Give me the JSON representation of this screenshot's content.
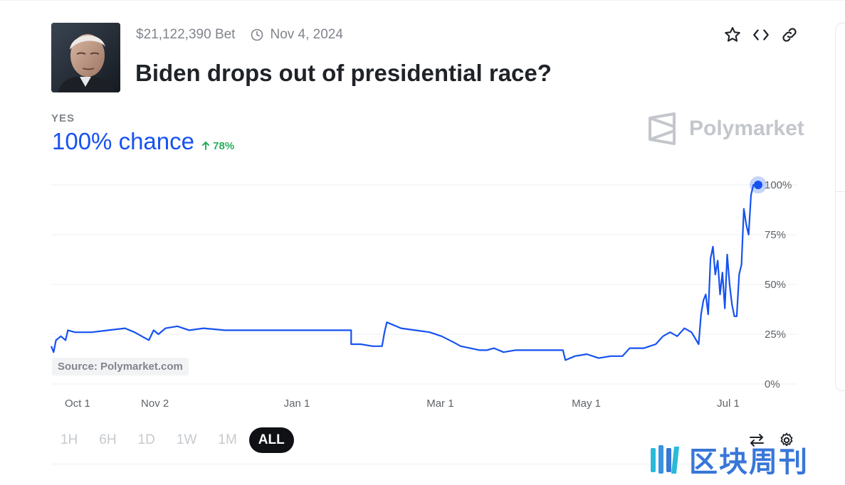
{
  "market": {
    "volume": "$21,122,390 Bet",
    "end_date": "Nov 4, 2024",
    "title": "Biden drops out of presidential race?"
  },
  "outcome": {
    "label": "YES",
    "chance": "100% chance",
    "delta": "78%"
  },
  "brand": {
    "name": "Polymarket"
  },
  "source_note": "Source: Polymarket.com",
  "ranges": [
    "1H",
    "6H",
    "1D",
    "1W",
    "1M",
    "ALL"
  ],
  "active_range": "ALL",
  "icons": {
    "star": "star-icon",
    "embed": "code-embed-icon",
    "link": "link-icon",
    "clock": "clock-icon",
    "swap": "swap-arrows-icon",
    "settings": "gear-icon",
    "logo": "polymarket-logo-icon"
  },
  "watermark": {
    "text": "区块周刊"
  },
  "colors": {
    "line": "#1652f0",
    "positive": "#27ae60",
    "active_pill": "#0f1114"
  },
  "chart_data": {
    "type": "line",
    "title": "",
    "xlabel": "",
    "ylabel": "",
    "ylim": [
      0,
      100
    ],
    "y_ticks": [
      "0%",
      "25%",
      "50%",
      "75%",
      "100%"
    ],
    "y_tick_values": [
      0,
      25,
      50,
      75,
      100
    ],
    "x_ticks": [
      "Oct 1",
      "Nov 2",
      "Jan 1",
      "Mar 1",
      "May 1",
      "Jul 1"
    ],
    "x_tick_dates": [
      "2023-10-01",
      "2023-11-02",
      "2024-01-01",
      "2024-03-01",
      "2024-05-01",
      "2024-07-01"
    ],
    "x_range": [
      "2023-09-28",
      "2024-07-21"
    ],
    "grid": true,
    "series": [
      {
        "name": "Yes",
        "x": [
          "2023-09-28",
          "2023-09-29",
          "2023-09-30",
          "2023-10-02",
          "2023-10-04",
          "2023-10-05",
          "2023-10-08",
          "2023-10-15",
          "2023-10-22",
          "2023-10-29",
          "2023-11-02",
          "2023-11-05",
          "2023-11-08",
          "2023-11-10",
          "2023-11-12",
          "2023-11-15",
          "2023-11-20",
          "2023-11-25",
          "2023-12-01",
          "2023-12-10",
          "2023-12-20",
          "2023-12-31",
          "2024-01-10",
          "2024-01-20",
          "2024-02-01",
          "2024-02-01",
          "2024-02-05",
          "2024-02-10",
          "2024-02-14",
          "2024-02-15",
          "2024-02-16",
          "2024-02-22",
          "2024-02-28",
          "2024-03-05",
          "2024-03-10",
          "2024-03-15",
          "2024-03-18",
          "2024-03-22",
          "2024-03-26",
          "2024-03-29",
          "2024-04-01",
          "2024-04-05",
          "2024-04-10",
          "2024-04-15",
          "2024-04-20",
          "2024-04-25",
          "2024-04-30",
          "2024-05-01",
          "2024-05-05",
          "2024-05-10",
          "2024-05-15",
          "2024-05-20",
          "2024-05-25",
          "2024-05-28",
          "2024-06-03",
          "2024-06-08",
          "2024-06-11",
          "2024-06-14",
          "2024-06-17",
          "2024-06-20",
          "2024-06-23",
          "2024-06-26",
          "2024-06-27",
          "2024-06-28",
          "2024-06-29",
          "2024-06-30",
          "2024-07-01",
          "2024-07-02",
          "2024-07-03",
          "2024-07-04",
          "2024-07-05",
          "2024-07-06",
          "2024-07-07",
          "2024-07-08",
          "2024-07-09",
          "2024-07-10",
          "2024-07-11",
          "2024-07-12",
          "2024-07-13",
          "2024-07-14",
          "2024-07-15",
          "2024-07-16",
          "2024-07-17",
          "2024-07-18",
          "2024-07-19",
          "2024-07-20",
          "2024-07-21"
        ],
        "y": [
          19,
          16,
          22,
          24,
          22,
          27,
          26,
          26,
          27,
          28,
          26,
          24,
          22,
          27,
          25,
          28,
          29,
          27,
          28,
          27,
          27,
          27,
          27,
          27,
          27,
          20,
          20,
          19,
          19,
          26,
          31,
          28,
          27,
          26,
          24,
          21,
          19,
          18,
          17,
          17,
          18,
          16,
          17,
          17,
          17,
          17,
          17,
          12,
          14,
          15,
          13,
          14,
          14,
          18,
          18,
          20,
          24,
          26,
          24,
          28,
          26,
          20,
          35,
          42,
          45,
          35,
          63,
          69,
          55,
          62,
          45,
          56,
          38,
          65,
          50,
          40,
          34,
          34,
          55,
          60,
          88,
          80,
          75,
          95,
          100,
          100,
          100
        ]
      }
    ]
  }
}
